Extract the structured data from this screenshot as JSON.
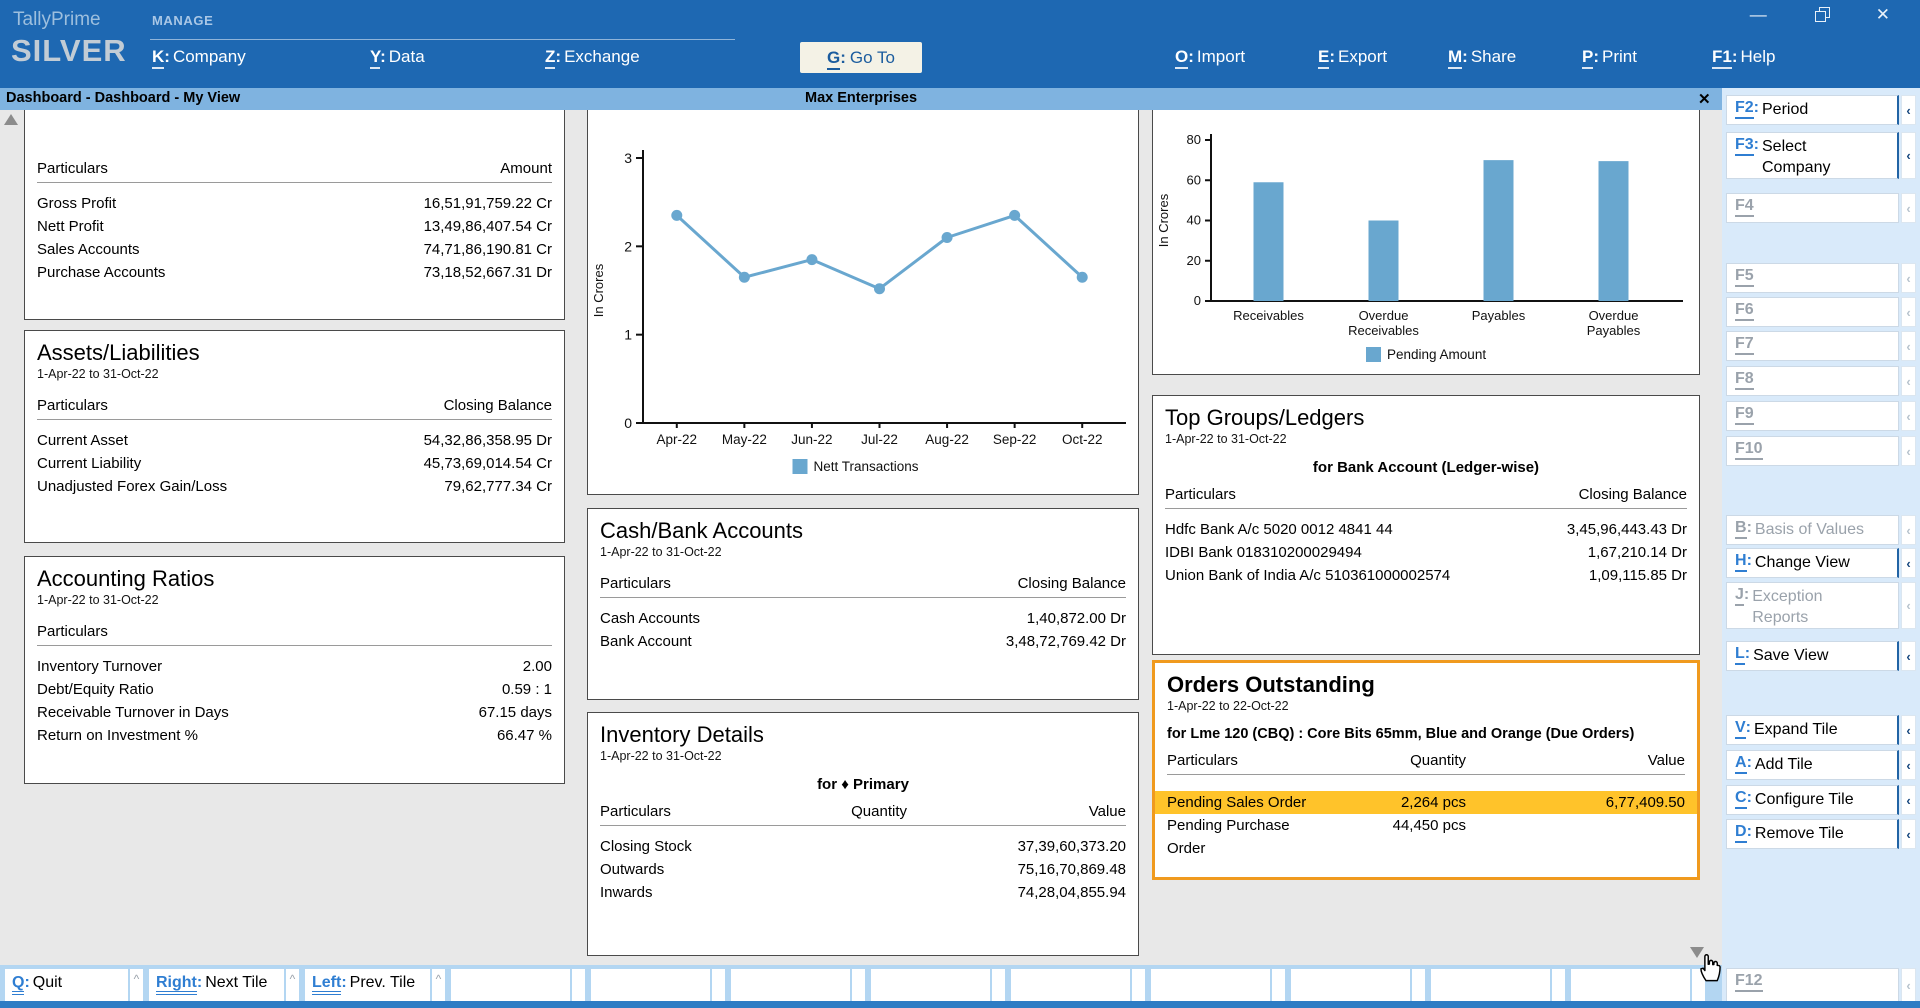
{
  "topbar": {
    "brand_line1": "TallyPrime",
    "brand_line2": "SILVER",
    "section_label": "MANAGE",
    "menu_left": [
      {
        "key": "K",
        "label": "Company"
      },
      {
        "key": "Y",
        "label": "Data"
      },
      {
        "key": "Z",
        "label": "Exchange"
      }
    ],
    "goto_item": {
      "key": "G",
      "label": "Go To"
    },
    "menu_right": [
      {
        "key": "O",
        "label": "Import"
      },
      {
        "key": "E",
        "label": "Export"
      },
      {
        "key": "M",
        "label": "Share"
      },
      {
        "key": "P",
        "label": "Print"
      },
      {
        "key": "F1",
        "label": "Help"
      }
    ],
    "window_controls": {
      "minimize": "—",
      "close": "✕"
    }
  },
  "report_bar": {
    "title": "Dashboard - Dashboard - My View",
    "company": "Max Enterprises",
    "close": "✕"
  },
  "tiles": [
    {
      "id": "profit-summary",
      "columns": [
        "Particulars",
        "Amount"
      ],
      "rows": [
        [
          "Gross Profit",
          "16,51,91,759.22 Cr"
        ],
        [
          "Nett Profit",
          "13,49,86,407.54 Cr"
        ],
        [
          "Sales Accounts",
          "74,71,86,190.81 Cr"
        ],
        [
          "Purchase Accounts",
          "73,18,52,667.31 Dr"
        ]
      ]
    },
    {
      "id": "assets-liabilities",
      "title": "Assets/Liabilities",
      "subtitle": "1-Apr-22 to 31-Oct-22",
      "columns": [
        "Particulars",
        "Closing Balance"
      ],
      "rows": [
        [
          "Current Asset",
          "54,32,86,358.95 Dr"
        ],
        [
          "Current Liability",
          "45,73,69,014.54 Cr"
        ],
        [
          "Unadjusted Forex Gain/Loss",
          "79,62,777.34 Cr"
        ]
      ]
    },
    {
      "id": "accounting-ratios",
      "title": "Accounting Ratios",
      "subtitle": "1-Apr-22 to 31-Oct-22",
      "columns": [
        "Particulars",
        ""
      ],
      "rows": [
        [
          "Inventory Turnover",
          "2.00"
        ],
        [
          "Debt/Equity Ratio",
          "0.59 : 1"
        ],
        [
          "Receivable Turnover in Days",
          "67.15 days"
        ],
        [
          "Return on Investment %",
          "66.47 %"
        ]
      ]
    },
    {
      "id": "cash-bank-accounts",
      "title": "Cash/Bank Accounts",
      "subtitle": "1-Apr-22 to 31-Oct-22",
      "columns": [
        "Particulars",
        "Closing Balance"
      ],
      "rows": [
        [
          "Cash Accounts",
          "1,40,872.00 Dr"
        ],
        [
          "Bank Account",
          "3,48,72,769.42 Dr"
        ]
      ]
    },
    {
      "id": "inventory-details",
      "title": "Inventory Details",
      "subtitle": "1-Apr-22 to 31-Oct-22",
      "for_line": "for ♦ Primary",
      "columns": [
        "Particulars",
        "Quantity",
        "Value"
      ],
      "rows": [
        [
          "Closing Stock",
          "",
          "37,39,60,373.20"
        ],
        [
          "Outwards",
          "",
          "75,16,70,869.48"
        ],
        [
          "Inwards",
          "",
          "74,28,04,855.94"
        ]
      ]
    },
    {
      "id": "top-groups-ledgers",
      "title": "Top Groups/Ledgers",
      "subtitle": "1-Apr-22 to 31-Oct-22",
      "for_line": "for Bank Account (Ledger-wise)",
      "columns": [
        "Particulars",
        "Closing Balance"
      ],
      "rows": [
        [
          "Hdfc Bank A/c 5020 0012 4841 44",
          "3,45,96,443.43 Dr"
        ],
        [
          "IDBI Bank 018310200029494",
          "1,67,210.14 Dr"
        ],
        [
          "Union Bank of India A/c 510361000002574",
          "1,09,115.85 Dr"
        ]
      ]
    },
    {
      "id": "orders-outstanding",
      "title": "Orders Outstanding",
      "subtitle": "1-Apr-22 to 22-Oct-22",
      "for_line": "for Lme 120 (CBQ) : Core Bits 65mm, Blue and Orange (Due Orders)",
      "columns": [
        "Particulars",
        "Quantity",
        "Value"
      ],
      "rows": [
        [
          "Pending Sales Order",
          "2,264 pcs",
          "6,77,409.50"
        ],
        [
          "Pending Purchase Order",
          "44,450 pcs",
          ""
        ]
      ],
      "highlight_rows": [
        0
      ],
      "selected": true
    }
  ],
  "chart_data": [
    {
      "id": "nett-transactions",
      "type": "line",
      "x": [
        "Apr-22",
        "May-22",
        "Jun-22",
        "Jul-22",
        "Aug-22",
        "Sep-22",
        "Oct-22"
      ],
      "series": [
        {
          "name": "Nett Transactions",
          "values": [
            2.35,
            1.65,
            1.85,
            1.52,
            2.1,
            2.35,
            1.65
          ]
        }
      ],
      "title": "",
      "xlabel": "",
      "ylabel": "In Crores",
      "ylim": [
        0,
        3
      ],
      "yticks": [
        0,
        1,
        2,
        3
      ],
      "grid": false,
      "legend_position": "bottom",
      "color": "#69a7cf"
    },
    {
      "id": "pending-amount",
      "type": "bar",
      "categories": [
        "Receivables",
        "Overdue\nReceivables",
        "Payables",
        "Overdue\nPayables"
      ],
      "series": [
        {
          "name": "Pending Amount",
          "values": [
            59,
            40,
            70,
            69.5
          ]
        }
      ],
      "title": "",
      "xlabel": "",
      "ylabel": "In Crores",
      "ylim": [
        0,
        80
      ],
      "yticks": [
        0,
        20,
        40,
        60,
        80
      ],
      "grid": false,
      "legend_position": "bottom",
      "color": "#69a7cf"
    }
  ],
  "sidebar": {
    "chevron": "‹",
    "items": [
      {
        "id": "f2",
        "key": "F2",
        "label": "Period",
        "enabled": true
      },
      {
        "id": "f3",
        "key": "F3",
        "label": "Select Company",
        "enabled": true
      },
      {
        "id": "f4",
        "key": "F4",
        "label": "",
        "enabled": false
      },
      {
        "id": "f5",
        "key": "F5",
        "label": "",
        "enabled": false
      },
      {
        "id": "f6",
        "key": "F6",
        "label": "",
        "enabled": false
      },
      {
        "id": "f7",
        "key": "F7",
        "label": "",
        "enabled": false
      },
      {
        "id": "f8",
        "key": "F8",
        "label": "",
        "enabled": false
      },
      {
        "id": "f9",
        "key": "F9",
        "label": "",
        "enabled": false
      },
      {
        "id": "f10",
        "key": "F10",
        "label": "",
        "enabled": false
      },
      {
        "id": "b",
        "key": "B",
        "label": "Basis of Values",
        "enabled": false
      },
      {
        "id": "h",
        "key": "H",
        "label": "Change View",
        "enabled": true
      },
      {
        "id": "j",
        "key": "J",
        "label": "Exception Reports",
        "enabled": false
      },
      {
        "id": "l",
        "key": "L",
        "label": "Save View",
        "enabled": true
      },
      {
        "id": "v",
        "key": "V",
        "label": "Expand Tile",
        "enabled": true
      },
      {
        "id": "a",
        "key": "A",
        "label": "Add Tile",
        "enabled": true
      },
      {
        "id": "c",
        "key": "C",
        "label": "Configure Tile",
        "enabled": true
      },
      {
        "id": "d",
        "key": "D",
        "label": "Remove Tile",
        "enabled": true
      },
      {
        "id": "f12",
        "key": "F12",
        "label": "",
        "enabled": false
      }
    ]
  },
  "bottombar": {
    "caret": "^",
    "cells": [
      {
        "key": "Q",
        "label": "Quit"
      },
      {
        "key": "Right",
        "label": "Next Tile"
      },
      {
        "key": "Left",
        "label": "Prev. Tile"
      }
    ],
    "empty_cells": 9
  }
}
